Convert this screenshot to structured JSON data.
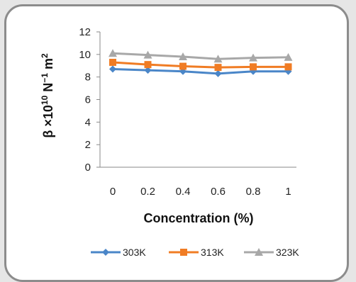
{
  "chart_data": {
    "type": "line",
    "x": [
      0,
      0.2,
      0.4,
      0.6,
      0.8,
      1
    ],
    "x_tick_labels": [
      "0",
      "0.2",
      "0.4",
      "0.6",
      "0.8",
      "1"
    ],
    "y_tick_labels": [
      "0",
      "2",
      "4",
      "6",
      "8",
      "10",
      "12"
    ],
    "xlabel": "Concentration (%)",
    "ylabel": {
      "prefix": "β ×10",
      "exp1": "10",
      "mid": " N",
      "exp2": "−1",
      "mid2": " m",
      "exp3": "2"
    },
    "ylim": [
      0,
      12
    ],
    "grid": false,
    "legend_position": "bottom",
    "series": [
      {
        "name": "303K",
        "values": [
          8.7,
          8.6,
          8.5,
          8.3,
          8.5,
          8.5
        ],
        "color": "#4a86c8",
        "marker": "diamond"
      },
      {
        "name": "313K",
        "values": [
          9.3,
          9.1,
          8.95,
          8.85,
          8.9,
          8.9
        ],
        "color": "#f07c24",
        "marker": "square"
      },
      {
        "name": "323K",
        "values": [
          10.1,
          9.95,
          9.8,
          9.6,
          9.7,
          9.75
        ],
        "color": "#a8a8a8",
        "marker": "triangle"
      }
    ]
  }
}
